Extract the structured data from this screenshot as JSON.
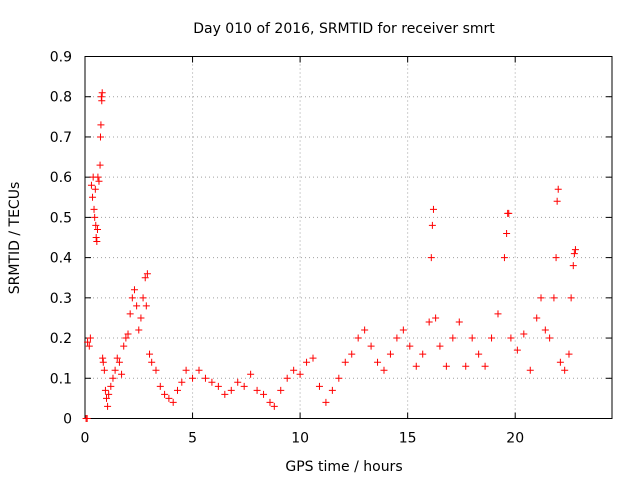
{
  "chart_data": {
    "type": "scatter",
    "title": "Day 010 of 2016, SRMTID for receiver smrt",
    "xlabel": "GPS time / hours",
    "ylabel": "SRMTID / TECUs",
    "xlim": [
      0,
      24.5
    ],
    "ylim": [
      0,
      0.9
    ],
    "xticks": [
      0,
      5,
      10,
      15,
      20
    ],
    "xtick_labels": [
      "0",
      "5",
      "10",
      "15",
      "20"
    ],
    "yticks": [
      0,
      0.1,
      0.2,
      0.3,
      0.4,
      0.5,
      0.6,
      0.7,
      0.8,
      0.9
    ],
    "ytick_labels": [
      "0",
      "0.1",
      "0.2",
      "0.3",
      "0.4",
      "0.5",
      "0.6",
      "0.7",
      "0.8",
      "0.9"
    ],
    "grid": true,
    "marker": "+",
    "marker_color": "#ff0000",
    "series": [
      {
        "name": "SRMTID",
        "points": [
          [
            0.05,
            0.0
          ],
          [
            0.1,
            0.0
          ],
          [
            0.12,
            0.19
          ],
          [
            0.2,
            0.18
          ],
          [
            0.25,
            0.2
          ],
          [
            0.3,
            0.58
          ],
          [
            0.35,
            0.55
          ],
          [
            0.38,
            0.6
          ],
          [
            0.42,
            0.52
          ],
          [
            0.45,
            0.5
          ],
          [
            0.48,
            0.57
          ],
          [
            0.5,
            0.48
          ],
          [
            0.52,
            0.45
          ],
          [
            0.55,
            0.44
          ],
          [
            0.58,
            0.47
          ],
          [
            0.6,
            0.6
          ],
          [
            0.65,
            0.59
          ],
          [
            0.7,
            0.63
          ],
          [
            0.72,
            0.7
          ],
          [
            0.74,
            0.73
          ],
          [
            0.76,
            0.8
          ],
          [
            0.78,
            0.79
          ],
          [
            0.8,
            0.81
          ],
          [
            0.82,
            0.15
          ],
          [
            0.85,
            0.14
          ],
          [
            0.9,
            0.12
          ],
          [
            0.95,
            0.07
          ],
          [
            1.0,
            0.05
          ],
          [
            1.05,
            0.03
          ],
          [
            1.1,
            0.06
          ],
          [
            1.2,
            0.08
          ],
          [
            1.3,
            0.1
          ],
          [
            1.4,
            0.12
          ],
          [
            1.5,
            0.15
          ],
          [
            1.6,
            0.14
          ],
          [
            1.7,
            0.11
          ],
          [
            1.8,
            0.18
          ],
          [
            1.9,
            0.2
          ],
          [
            2.0,
            0.21
          ],
          [
            2.1,
            0.26
          ],
          [
            2.2,
            0.3
          ],
          [
            2.3,
            0.32
          ],
          [
            2.4,
            0.28
          ],
          [
            2.5,
            0.22
          ],
          [
            2.6,
            0.25
          ],
          [
            2.7,
            0.3
          ],
          [
            2.8,
            0.35
          ],
          [
            2.85,
            0.28
          ],
          [
            2.9,
            0.36
          ],
          [
            3.0,
            0.16
          ],
          [
            3.1,
            0.14
          ],
          [
            3.3,
            0.12
          ],
          [
            3.5,
            0.08
          ],
          [
            3.7,
            0.06
          ],
          [
            3.9,
            0.05
          ],
          [
            4.1,
            0.04
          ],
          [
            4.3,
            0.07
          ],
          [
            4.5,
            0.09
          ],
          [
            4.7,
            0.12
          ],
          [
            5.0,
            0.1
          ],
          [
            5.3,
            0.12
          ],
          [
            5.6,
            0.1
          ],
          [
            5.9,
            0.09
          ],
          [
            6.2,
            0.08
          ],
          [
            6.5,
            0.06
          ],
          [
            6.8,
            0.07
          ],
          [
            7.1,
            0.09
          ],
          [
            7.4,
            0.08
          ],
          [
            7.7,
            0.11
          ],
          [
            8.0,
            0.07
          ],
          [
            8.3,
            0.06
          ],
          [
            8.6,
            0.04
          ],
          [
            8.8,
            0.03
          ],
          [
            9.1,
            0.07
          ],
          [
            9.4,
            0.1
          ],
          [
            9.7,
            0.12
          ],
          [
            10.0,
            0.11
          ],
          [
            10.3,
            0.14
          ],
          [
            10.6,
            0.15
          ],
          [
            10.9,
            0.08
          ],
          [
            11.2,
            0.04
          ],
          [
            11.5,
            0.07
          ],
          [
            11.8,
            0.1
          ],
          [
            12.1,
            0.14
          ],
          [
            12.4,
            0.16
          ],
          [
            12.7,
            0.2
          ],
          [
            13.0,
            0.22
          ],
          [
            13.3,
            0.18
          ],
          [
            13.6,
            0.14
          ],
          [
            13.9,
            0.12
          ],
          [
            14.2,
            0.16
          ],
          [
            14.5,
            0.2
          ],
          [
            14.8,
            0.22
          ],
          [
            15.1,
            0.18
          ],
          [
            15.4,
            0.13
          ],
          [
            15.7,
            0.16
          ],
          [
            16.0,
            0.24
          ],
          [
            16.1,
            0.4
          ],
          [
            16.15,
            0.48
          ],
          [
            16.2,
            0.52
          ],
          [
            16.3,
            0.25
          ],
          [
            16.5,
            0.18
          ],
          [
            16.8,
            0.13
          ],
          [
            17.1,
            0.2
          ],
          [
            17.4,
            0.24
          ],
          [
            17.7,
            0.13
          ],
          [
            18.0,
            0.2
          ],
          [
            18.3,
            0.16
          ],
          [
            18.6,
            0.13
          ],
          [
            18.9,
            0.2
          ],
          [
            19.2,
            0.26
          ],
          [
            19.5,
            0.4
          ],
          [
            19.6,
            0.46
          ],
          [
            19.65,
            0.51
          ],
          [
            19.7,
            0.51
          ],
          [
            19.8,
            0.2
          ],
          [
            20.1,
            0.17
          ],
          [
            20.4,
            0.21
          ],
          [
            20.7,
            0.12
          ],
          [
            21.0,
            0.25
          ],
          [
            21.2,
            0.3
          ],
          [
            21.4,
            0.22
          ],
          [
            21.6,
            0.2
          ],
          [
            21.8,
            0.3
          ],
          [
            21.9,
            0.4
          ],
          [
            21.95,
            0.54
          ],
          [
            22.0,
            0.57
          ],
          [
            22.1,
            0.14
          ],
          [
            22.3,
            0.12
          ],
          [
            22.5,
            0.16
          ],
          [
            22.6,
            0.3
          ],
          [
            22.7,
            0.38
          ],
          [
            22.75,
            0.41
          ],
          [
            22.8,
            0.42
          ]
        ]
      }
    ]
  }
}
